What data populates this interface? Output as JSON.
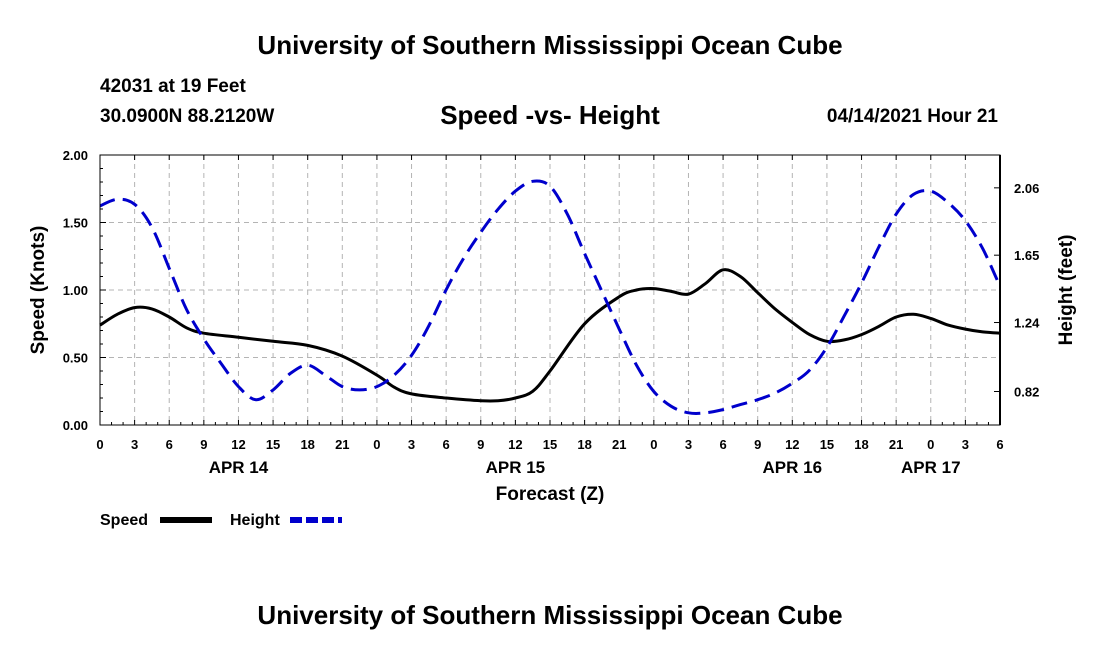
{
  "header": {
    "title": "University of Southern Mississippi Ocean Cube",
    "station": "42031 at 19 Feet",
    "coords": "30.0900N  88.2120W",
    "datetime": "04/14/2021 Hour 21"
  },
  "footer": {
    "title": "University of Southern Mississippi Ocean Cube"
  },
  "chart_data": {
    "type": "line",
    "title": "Speed -vs- Height",
    "xlabel": "Forecast (Z)",
    "ylabel": "Speed (Knots)",
    "y2label": "Height (feet)",
    "xlim": [
      0,
      78
    ],
    "ylim": [
      0,
      2.0
    ],
    "y2lim": [
      0.616,
      2.26
    ],
    "x_tick_labels": [
      "0",
      "3",
      "6",
      "9",
      "12",
      "15",
      "18",
      "21",
      "0",
      "3",
      "6",
      "9",
      "12",
      "15",
      "18",
      "21",
      "0",
      "3",
      "6",
      "9",
      "12",
      "15",
      "18",
      "21",
      "0",
      "3",
      "6"
    ],
    "y_ticks": [
      "0.00",
      "0.50",
      "1.00",
      "1.50",
      "2.00"
    ],
    "y2_ticks": [
      "0.82",
      "1.24",
      "1.65",
      "2.06"
    ],
    "date_labels": [
      {
        "label": "APR 14",
        "x": 12
      },
      {
        "label": "APR 15",
        "x": 36
      },
      {
        "label": "APR 16",
        "x": 60
      },
      {
        "label": "APR 17",
        "x": 72
      }
    ],
    "grid": true,
    "series": [
      {
        "name": "Speed",
        "axis": "left",
        "color": "#000000",
        "style": "solid",
        "x": [
          0,
          1.5,
          3,
          4.5,
          6,
          7.5,
          9,
          12,
          15,
          18,
          21,
          24,
          25.5,
          27,
          30,
          33,
          34.5,
          36,
          37.5,
          39,
          42,
          45,
          46.5,
          48,
          49.5,
          51,
          52.5,
          54,
          55.5,
          57,
          58.5,
          60,
          61.5,
          63,
          64.5,
          66,
          67.5,
          69,
          70.5,
          72,
          73.5,
          75,
          76.5,
          78
        ],
        "values": [
          0.74,
          0.82,
          0.87,
          0.86,
          0.8,
          0.72,
          0.68,
          0.65,
          0.62,
          0.59,
          0.51,
          0.37,
          0.28,
          0.23,
          0.2,
          0.18,
          0.18,
          0.2,
          0.25,
          0.4,
          0.75,
          0.95,
          1.0,
          1.01,
          0.99,
          0.97,
          1.05,
          1.15,
          1.1,
          0.98,
          0.86,
          0.76,
          0.67,
          0.62,
          0.63,
          0.67,
          0.73,
          0.8,
          0.82,
          0.79,
          0.74,
          0.71,
          0.69,
          0.68
        ]
      },
      {
        "name": "Height",
        "axis": "right",
        "color": "#0000cc",
        "style": "dashed",
        "x": [
          0,
          1.5,
          3,
          4.5,
          6,
          7.5,
          9,
          10.5,
          12,
          13.5,
          15,
          16.5,
          18,
          19.5,
          21,
          22.5,
          24,
          25.5,
          27,
          28.5,
          30,
          31.5,
          33,
          34.5,
          36,
          37.5,
          39,
          40.5,
          42,
          43.5,
          45,
          46.5,
          48,
          49.5,
          51,
          52.5,
          54,
          55.5,
          57,
          58.5,
          60,
          61.5,
          63,
          64.5,
          66,
          67.5,
          69,
          70.5,
          72,
          73.5,
          75,
          76.5,
          78
        ],
        "values": [
          1.95,
          1.99,
          1.96,
          1.82,
          1.57,
          1.32,
          1.14,
          0.99,
          0.85,
          0.77,
          0.83,
          0.93,
          0.98,
          0.92,
          0.85,
          0.83,
          0.85,
          0.92,
          1.04,
          1.22,
          1.44,
          1.63,
          1.79,
          1.93,
          2.04,
          2.1,
          2.07,
          1.9,
          1.66,
          1.43,
          1.2,
          0.98,
          0.82,
          0.73,
          0.69,
          0.69,
          0.71,
          0.74,
          0.77,
          0.81,
          0.87,
          0.95,
          1.09,
          1.28,
          1.48,
          1.7,
          1.9,
          2.02,
          2.04,
          1.97,
          1.86,
          1.69,
          1.46
        ]
      }
    ],
    "legend": [
      {
        "label": "Speed",
        "color": "#000000",
        "style": "solid"
      },
      {
        "label": "Height",
        "color": "#0000cc",
        "style": "dashed"
      }
    ]
  }
}
